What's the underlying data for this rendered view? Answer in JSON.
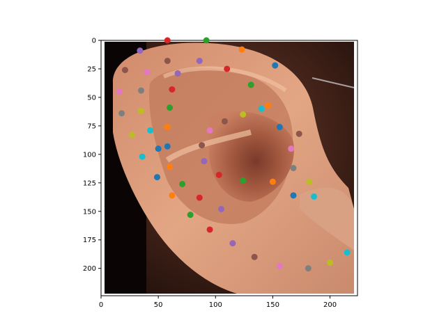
{
  "chart_data": {
    "type": "scatter",
    "background": "ear-photo",
    "xlim": [
      0,
      224
    ],
    "ylim": [
      224,
      0
    ],
    "x_ticks": [
      0,
      50,
      100,
      150,
      200
    ],
    "y_ticks": [
      0,
      25,
      50,
      75,
      100,
      125,
      150,
      175,
      200
    ],
    "x_tick_labels": [
      "0",
      "50",
      "100",
      "150",
      "200"
    ],
    "y_tick_labels": [
      "0",
      "25",
      "50",
      "75",
      "100",
      "125",
      "150",
      "175",
      "200"
    ],
    "palette": [
      "#1f77b4",
      "#ff7f0e",
      "#2ca02c",
      "#d62728",
      "#9467bd",
      "#8c564b",
      "#e377c2",
      "#7f7f7f",
      "#bcbd22",
      "#17becf"
    ],
    "points": [
      {
        "x": 58,
        "y": 0,
        "color": "#d62728"
      },
      {
        "x": 92,
        "y": 0,
        "color": "#2ca02c"
      },
      {
        "x": 34,
        "y": 9,
        "color": "#9467bd"
      },
      {
        "x": 123,
        "y": 8,
        "color": "#ff7f0e"
      },
      {
        "x": 58,
        "y": 18,
        "color": "#8c564b"
      },
      {
        "x": 86,
        "y": 18,
        "color": "#9467bd"
      },
      {
        "x": 152,
        "y": 22,
        "color": "#1f77b4"
      },
      {
        "x": 21,
        "y": 26,
        "color": "#8c564b"
      },
      {
        "x": 40,
        "y": 28,
        "color": "#e377c2"
      },
      {
        "x": 67,
        "y": 29,
        "color": "#9467bd"
      },
      {
        "x": 110,
        "y": 25,
        "color": "#d62728"
      },
      {
        "x": 131,
        "y": 39,
        "color": "#2ca02c"
      },
      {
        "x": 16,
        "y": 45,
        "color": "#e377c2"
      },
      {
        "x": 35,
        "y": 44,
        "color": "#7f7f7f"
      },
      {
        "x": 62,
        "y": 43,
        "color": "#d62728"
      },
      {
        "x": 146,
        "y": 57,
        "color": "#ff7f0e"
      },
      {
        "x": 18,
        "y": 64,
        "color": "#7f7f7f"
      },
      {
        "x": 35,
        "y": 62,
        "color": "#bcbd22"
      },
      {
        "x": 60,
        "y": 59,
        "color": "#2ca02c"
      },
      {
        "x": 124,
        "y": 65,
        "color": "#bcbd22"
      },
      {
        "x": 140,
        "y": 60,
        "color": "#17becf"
      },
      {
        "x": 108,
        "y": 71,
        "color": "#8c564b"
      },
      {
        "x": 58,
        "y": 76,
        "color": "#ff7f0e"
      },
      {
        "x": 43,
        "y": 79,
        "color": "#17becf"
      },
      {
        "x": 95,
        "y": 79,
        "color": "#e377c2"
      },
      {
        "x": 156,
        "y": 76,
        "color": "#1f77b4"
      },
      {
        "x": 27,
        "y": 83,
        "color": "#bcbd22"
      },
      {
        "x": 173,
        "y": 82,
        "color": "#8c564b"
      },
      {
        "x": 88,
        "y": 92,
        "color": "#8c564b"
      },
      {
        "x": 50,
        "y": 95,
        "color": "#1f77b4"
      },
      {
        "x": 58,
        "y": 93,
        "color": "#1f77b4"
      },
      {
        "x": 166,
        "y": 95,
        "color": "#e377c2"
      },
      {
        "x": 36,
        "y": 102,
        "color": "#17becf"
      },
      {
        "x": 90,
        "y": 106,
        "color": "#9467bd"
      },
      {
        "x": 60,
        "y": 111,
        "color": "#ff7f0e"
      },
      {
        "x": 168,
        "y": 112,
        "color": "#7f7f7f"
      },
      {
        "x": 49,
        "y": 120,
        "color": "#1f77b4"
      },
      {
        "x": 103,
        "y": 118,
        "color": "#d62728"
      },
      {
        "x": 124,
        "y": 123,
        "color": "#2ca02c"
      },
      {
        "x": 150,
        "y": 124,
        "color": "#ff7f0e"
      },
      {
        "x": 182,
        "y": 124,
        "color": "#bcbd22"
      },
      {
        "x": 71,
        "y": 126,
        "color": "#2ca02c"
      },
      {
        "x": 62,
        "y": 136,
        "color": "#ff7f0e"
      },
      {
        "x": 86,
        "y": 138,
        "color": "#d62728"
      },
      {
        "x": 168,
        "y": 136,
        "color": "#1f77b4"
      },
      {
        "x": 186,
        "y": 137,
        "color": "#17becf"
      },
      {
        "x": 105,
        "y": 148,
        "color": "#9467bd"
      },
      {
        "x": 78,
        "y": 153,
        "color": "#2ca02c"
      },
      {
        "x": 95,
        "y": 166,
        "color": "#d62728"
      },
      {
        "x": 115,
        "y": 178,
        "color": "#9467bd"
      },
      {
        "x": 134,
        "y": 190,
        "color": "#8c564b"
      },
      {
        "x": 215,
        "y": 186,
        "color": "#17becf"
      },
      {
        "x": 156,
        "y": 198,
        "color": "#e377c2"
      },
      {
        "x": 181,
        "y": 200,
        "color": "#7f7f7f"
      },
      {
        "x": 200,
        "y": 195,
        "color": "#bcbd22"
      }
    ]
  }
}
